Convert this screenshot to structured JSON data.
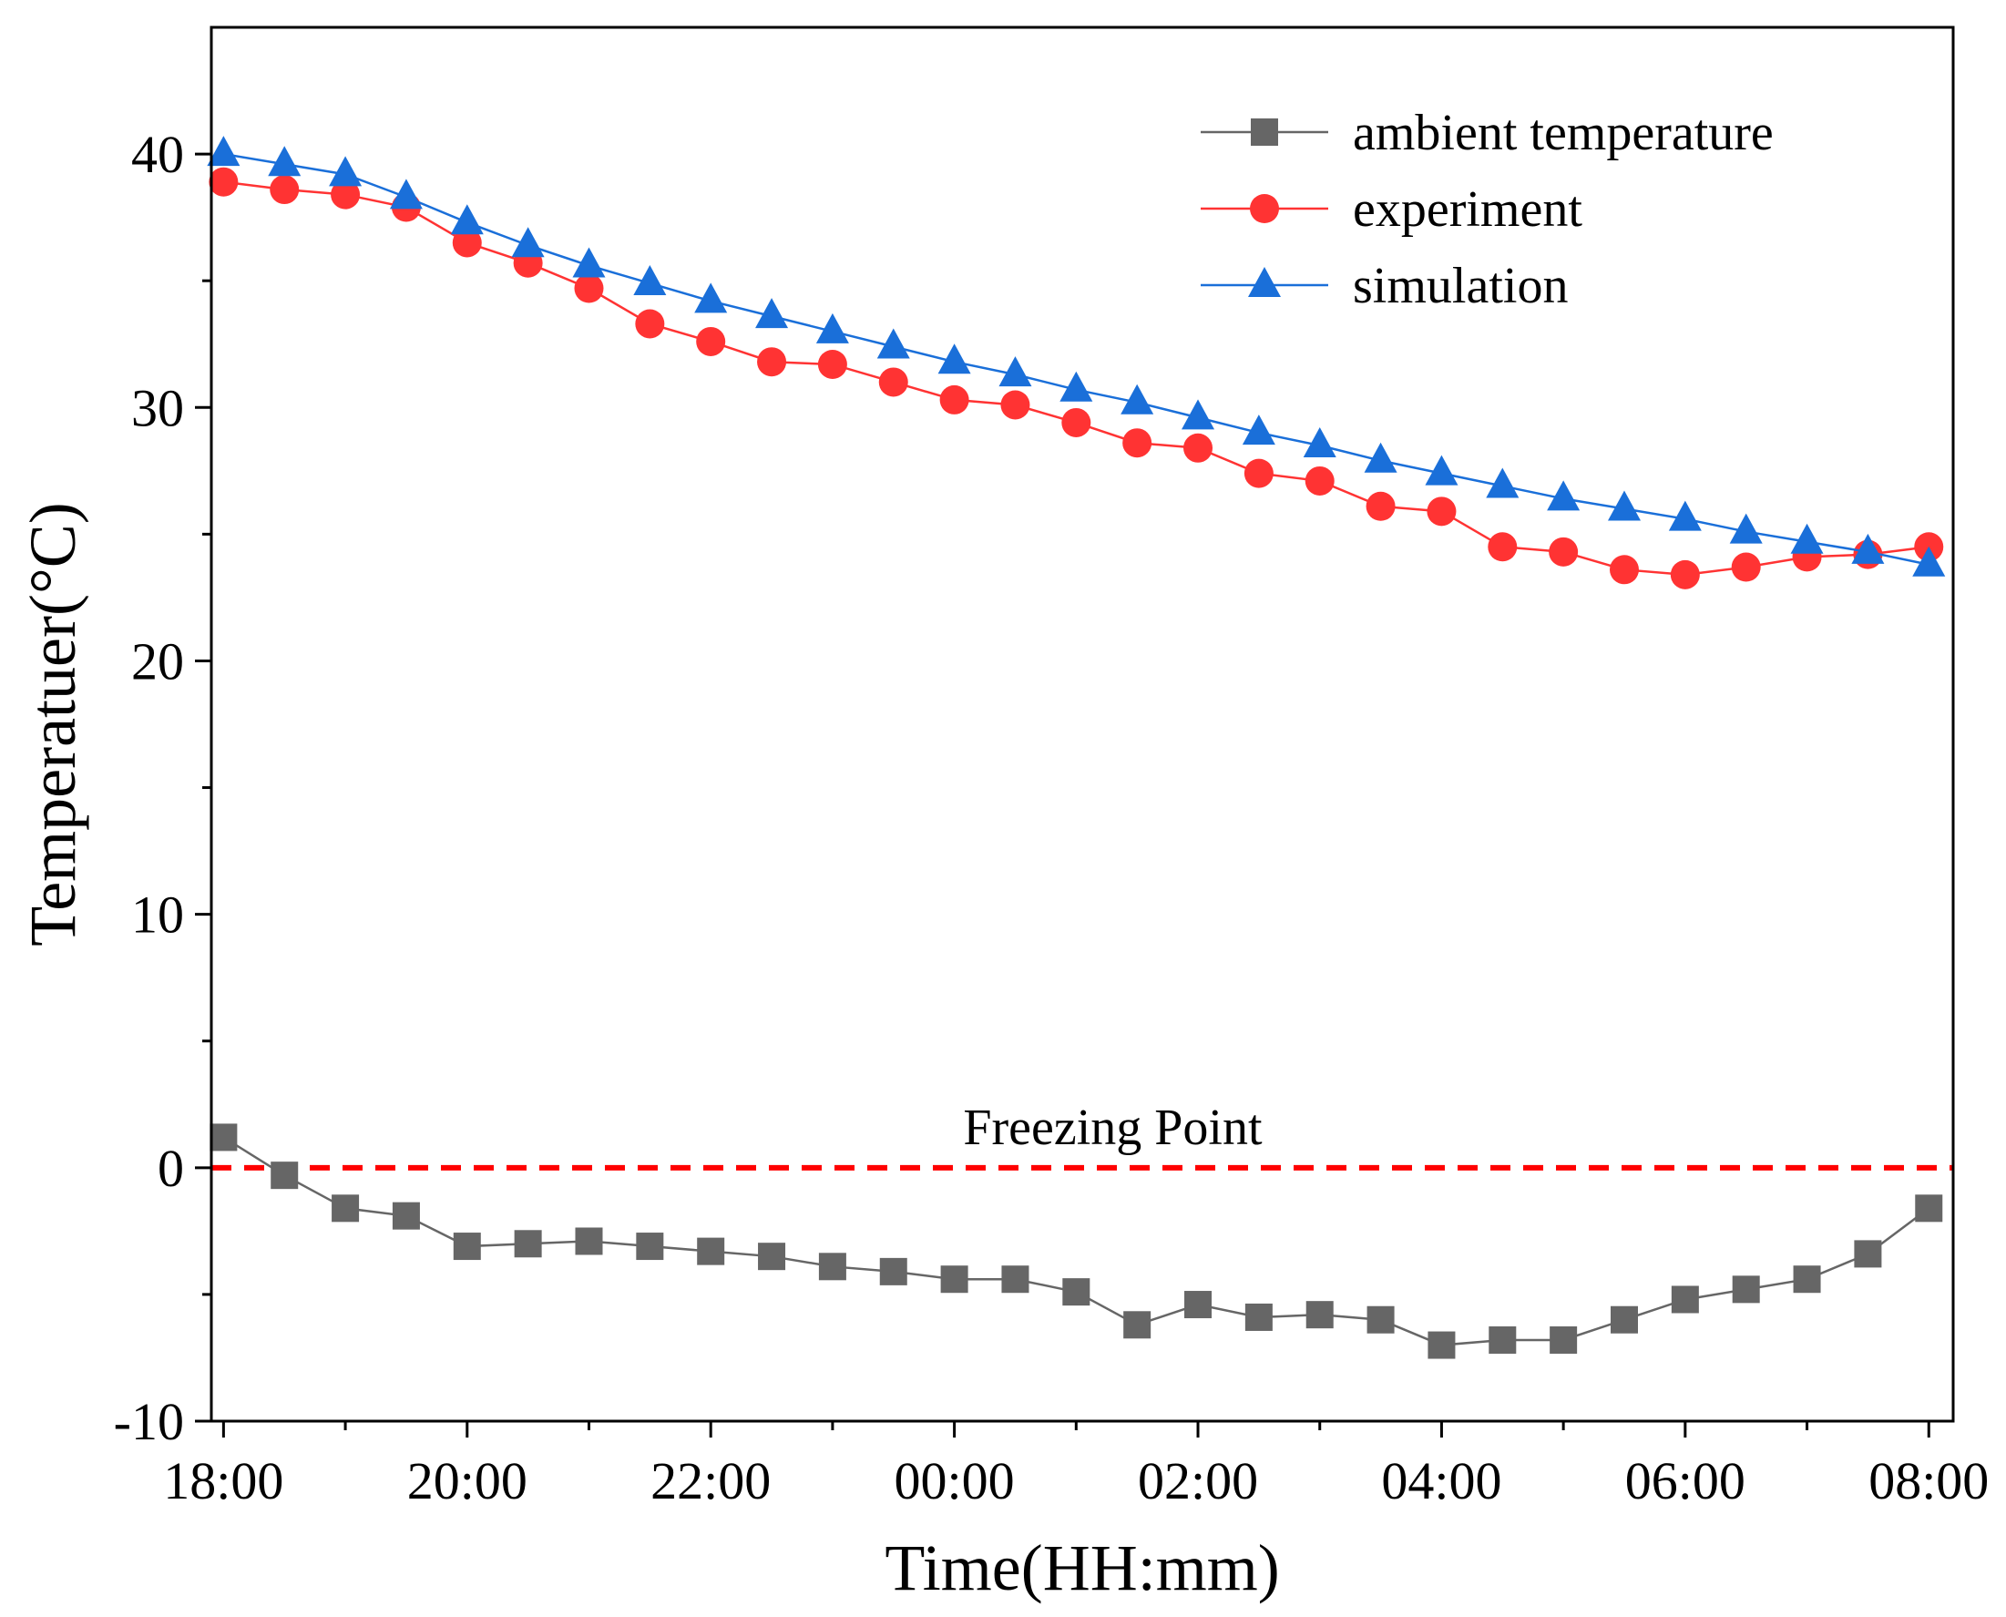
{
  "chart_data": {
    "type": "line",
    "title": "",
    "xlabel": "Time(HH:mm)",
    "ylabel": "Temperatuer(°C)",
    "xlim": [
      17.9,
      32.2
    ],
    "ylim": [
      -10,
      45
    ],
    "x": [
      18,
      18.5,
      19,
      19.5,
      20,
      20.5,
      21,
      21.5,
      22,
      22.5,
      23,
      23.5,
      24,
      24.5,
      25,
      25.5,
      26,
      26.5,
      27,
      27.5,
      28,
      28.5,
      29,
      29.5,
      30,
      30.5,
      31,
      31.5,
      32
    ],
    "x_ticks": [
      18,
      20,
      22,
      24,
      26,
      28,
      30,
      32
    ],
    "x_tick_labels": [
      "18:00",
      "20:00",
      "22:00",
      "00:00",
      "02:00",
      "04:00",
      "06:00",
      "08:00"
    ],
    "y_ticks": [
      -10,
      0,
      10,
      20,
      30,
      40
    ],
    "y_tick_labels": [
      "-10",
      "0",
      "10",
      "20",
      "30",
      "40"
    ],
    "y_minor_ticks": [
      -5,
      5,
      15,
      25,
      35
    ],
    "series": [
      {
        "name": "ambient temperature",
        "color": "#666666",
        "marker": "square",
        "values": [
          1.2,
          -0.3,
          -1.6,
          -1.9,
          -3.1,
          -3.0,
          -2.9,
          -3.1,
          -3.3,
          -3.5,
          -3.9,
          -4.1,
          -4.4,
          -4.4,
          -4.9,
          -6.2,
          -5.4,
          -5.9,
          -5.8,
          -6.0,
          -7.0,
          -6.8,
          -6.8,
          -6.0,
          -5.2,
          -4.8,
          -4.4,
          -3.4,
          -1.6
        ]
      },
      {
        "name": "experiment",
        "color": "#ff3333",
        "marker": "circle",
        "values": [
          38.9,
          38.6,
          38.4,
          37.9,
          36.5,
          35.7,
          34.7,
          33.3,
          32.6,
          31.8,
          31.7,
          31.0,
          30.3,
          30.1,
          29.4,
          28.6,
          28.4,
          27.4,
          27.1,
          26.1,
          25.9,
          24.5,
          24.3,
          23.6,
          23.4,
          23.7,
          24.1,
          24.2,
          24.5
        ]
      },
      {
        "name": "simulation",
        "color": "#1a6fd9",
        "marker": "triangle",
        "values": [
          40.0,
          39.6,
          39.2,
          38.3,
          37.3,
          36.4,
          35.6,
          34.9,
          34.2,
          33.6,
          33.0,
          32.4,
          31.8,
          31.3,
          30.7,
          30.2,
          29.6,
          29.0,
          28.5,
          27.9,
          27.4,
          26.9,
          26.4,
          26.0,
          25.6,
          25.1,
          24.7,
          24.3,
          23.8
        ]
      }
    ],
    "reference_line": {
      "y": 0,
      "label": "Freezing Point",
      "color": "#ff0000",
      "style": "dashed"
    },
    "legend": {
      "position": "top-right"
    },
    "grid": false
  }
}
